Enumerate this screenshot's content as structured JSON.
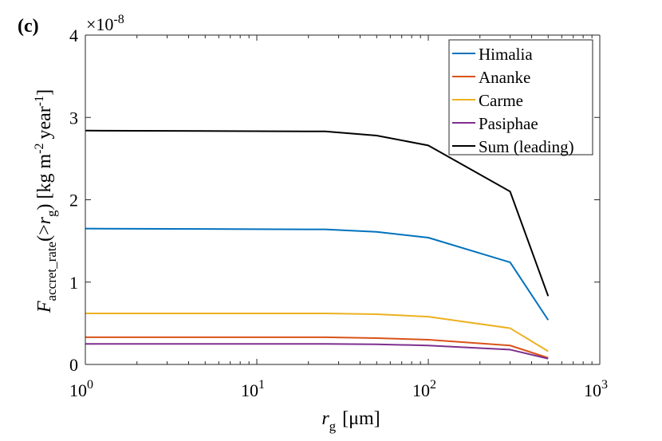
{
  "panel_label": "(c)",
  "chart_data": {
    "type": "line",
    "title": "",
    "exponent_label": "×10",
    "exponent_power": "-8",
    "x_scale": "log",
    "xlim": [
      1,
      1000
    ],
    "ylim": [
      0,
      4e-08
    ],
    "y_ticks": [
      0,
      1e-08,
      2e-08,
      3e-08,
      4e-08
    ],
    "y_tick_labels": [
      "0",
      "1",
      "2",
      "3",
      "4"
    ],
    "x_ticks": [
      1,
      10,
      100,
      1000
    ],
    "x_tick_base": "10",
    "x_tick_exponents": [
      "0",
      "1",
      "2",
      "3"
    ],
    "xlabel": {
      "var": "r",
      "sub": "g",
      "unit": "[μm]"
    },
    "ylabel": {
      "var": "F",
      "sub": "accret_rate",
      "arg_open": "(>",
      "arg_var": "r",
      "arg_sub": "g",
      "arg_close": ")",
      "unit_a": "[kg m",
      "unit_exp_a": "-2",
      "unit_b": "year",
      "unit_exp_b": "-1",
      "unit_c": "]"
    },
    "legend_position": "top-right",
    "x": [
      1,
      25,
      50,
      100,
      300,
      500
    ],
    "series": [
      {
        "name": "Himalia",
        "color": "#0072BD",
        "values": [
          1.65e-08,
          1.64e-08,
          1.61e-08,
          1.54e-08,
          1.24e-08,
          5.4e-09
        ]
      },
      {
        "name": "Ananke",
        "color": "#D95319",
        "values": [
          3.3e-09,
          3.3e-09,
          3.2e-09,
          3e-09,
          2.3e-09,
          8e-10
        ]
      },
      {
        "name": "Carme",
        "color": "#EDB120",
        "values": [
          6.2e-09,
          6.2e-09,
          6.1e-09,
          5.8e-09,
          4.4e-09,
          1.6e-09
        ]
      },
      {
        "name": "Pasiphae",
        "color": "#7E2F8E",
        "values": [
          2.5e-09,
          2.5e-09,
          2.45e-09,
          2.3e-09,
          1.8e-09,
          7e-10
        ]
      },
      {
        "name": "Sum (leading)",
        "color": "#000000",
        "values": [
          2.84e-08,
          2.83e-08,
          2.78e-08,
          2.66e-08,
          2.1e-08,
          8.3e-09
        ]
      }
    ]
  }
}
